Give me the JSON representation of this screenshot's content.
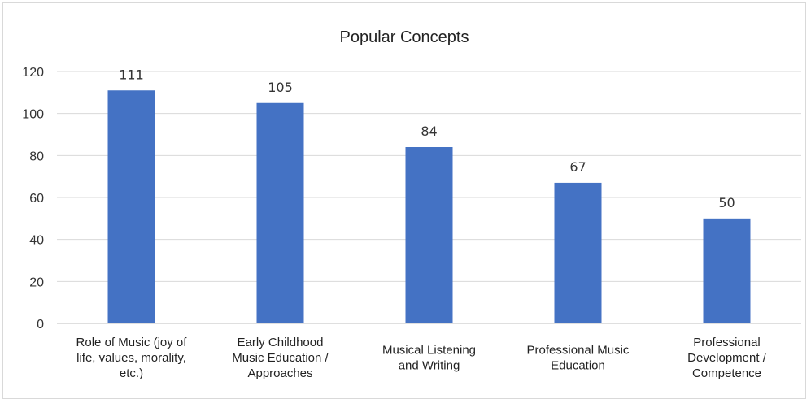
{
  "chart_data": {
    "type": "bar",
    "title": "Popular Concepts",
    "categories": [
      [
        "Role of Music (joy of",
        "life, values, morality,",
        "etc.)"
      ],
      [
        "Early Childhood",
        "Music Education /",
        "Approaches"
      ],
      [
        "Musical Listening",
        "and Writing"
      ],
      [
        "Professional Music",
        "Education"
      ],
      [
        "Professional",
        "Development /",
        "Competence"
      ]
    ],
    "values": [
      111,
      105,
      84,
      67,
      50
    ],
    "ylim": [
      0,
      120
    ],
    "yticks": [
      0,
      20,
      40,
      60,
      80,
      100,
      120
    ],
    "grid": true,
    "legend": "none",
    "bar_color": "#4472c4"
  }
}
